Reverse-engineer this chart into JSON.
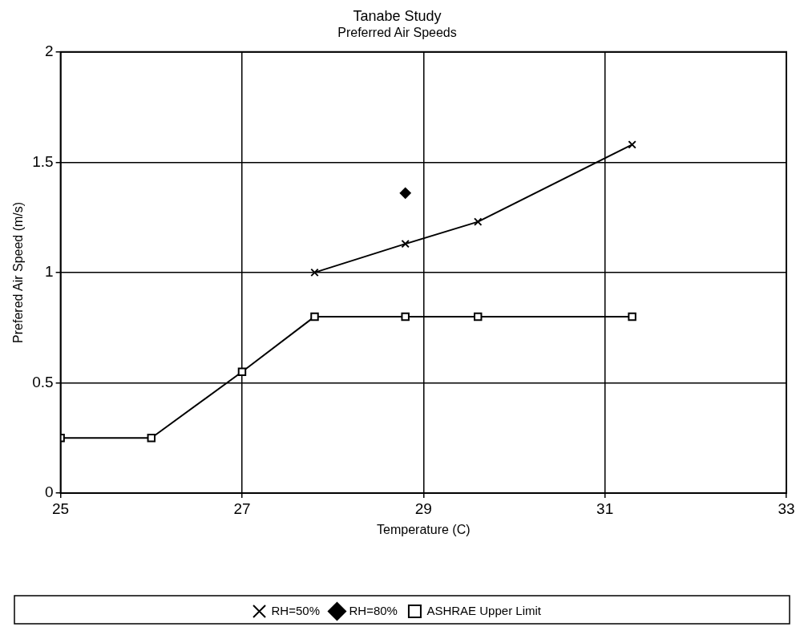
{
  "chart_data": {
    "type": "line",
    "title": "Tanabe Study",
    "subtitle": "Preferred Air Speeds",
    "xlabel": "Temperature (C)",
    "ylabel": "Prefered Air Speed (m/s)",
    "xlim": [
      25,
      33
    ],
    "xticks": [
      25,
      27,
      29,
      31,
      33
    ],
    "ylim": [
      0,
      2
    ],
    "yticks": [
      0,
      0.5,
      1,
      1.5,
      2
    ],
    "grid": true,
    "legend": "bottom",
    "series": [
      {
        "name": "RH=50%",
        "type": "line",
        "color": "#000000",
        "marker": "cross",
        "x": [
          27.8,
          28.8,
          29.6,
          31.3
        ],
        "values": [
          1.0,
          1.13,
          1.23,
          1.58
        ]
      },
      {
        "name": "RH=80%",
        "type": "scatter",
        "color": "#000000",
        "marker": "diamond",
        "x": [
          28.8
        ],
        "values": [
          1.36
        ]
      },
      {
        "name": "ASHRAE Upper Limit",
        "type": "line",
        "color": "#000000",
        "marker": "square",
        "x": [
          25,
          26,
          27,
          27.8,
          28.8,
          29.6,
          31.3
        ],
        "values": [
          0.25,
          0.25,
          0.55,
          0.8,
          0.8,
          0.8,
          0.8
        ]
      }
    ]
  }
}
